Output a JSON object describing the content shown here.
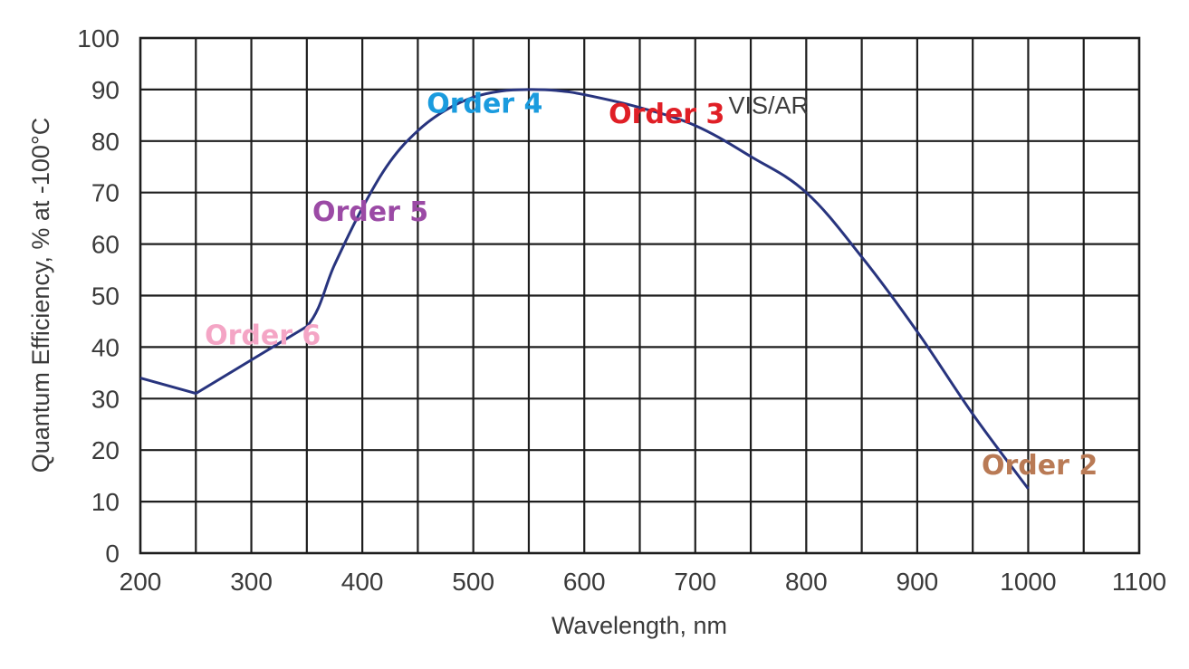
{
  "chart_data": {
    "type": "line",
    "title": "",
    "xlabel": "Wavelength, nm",
    "ylabel": "Quantum Efficiency, % at -100°C",
    "xlim": [
      200,
      1100
    ],
    "ylim": [
      0,
      100
    ],
    "x_grid_step": 50,
    "y_grid_step": 10,
    "grid": true,
    "x_ticks": [
      200,
      300,
      400,
      500,
      600,
      700,
      800,
      900,
      1000,
      1100
    ],
    "x_tick_labels": [
      "200",
      "300",
      "400",
      "500",
      "600",
      "700",
      "800",
      "900",
      "1000",
      "1100"
    ],
    "y_ticks": [
      0,
      10,
      20,
      30,
      40,
      50,
      60,
      70,
      80,
      90,
      100
    ],
    "y_tick_labels": [
      "0",
      "10",
      "20",
      "30",
      "40",
      "50",
      "60",
      "70",
      "80",
      "90",
      "100"
    ],
    "series": [
      {
        "name": "VIS/AR",
        "color": "#28347e",
        "x": [
          200,
          250,
          300,
          350,
          375,
          400,
          425,
          450,
          475,
          500,
          525,
          550,
          575,
          600,
          650,
          700,
          750,
          800,
          850,
          900,
          950,
          1000
        ],
        "y": [
          34,
          31,
          37.5,
          44,
          56,
          67,
          76,
          82,
          86,
          88.5,
          89.7,
          90,
          89.8,
          89,
          86.5,
          83,
          77,
          70,
          57.5,
          43,
          27,
          12.5
        ]
      }
    ],
    "annotations": [
      {
        "text": "Order 6",
        "x": 258,
        "y": 40.5,
        "color": "#f4a5c5"
      },
      {
        "text": "Order 5",
        "x": 355,
        "y": 64.5,
        "color": "#9b4aa5"
      },
      {
        "text": "Order 4",
        "x": 458,
        "y": 85.5,
        "color": "#1a9bde"
      },
      {
        "text": "Order 3",
        "x": 622,
        "y": 83.5,
        "color": "#e01f26"
      },
      {
        "text": "VIS/AR",
        "x": 730,
        "y": 85.3,
        "color": "#3c3c3c"
      },
      {
        "text": "Order 2",
        "x": 958,
        "y": 15.3,
        "color": "#b97a55"
      }
    ]
  }
}
